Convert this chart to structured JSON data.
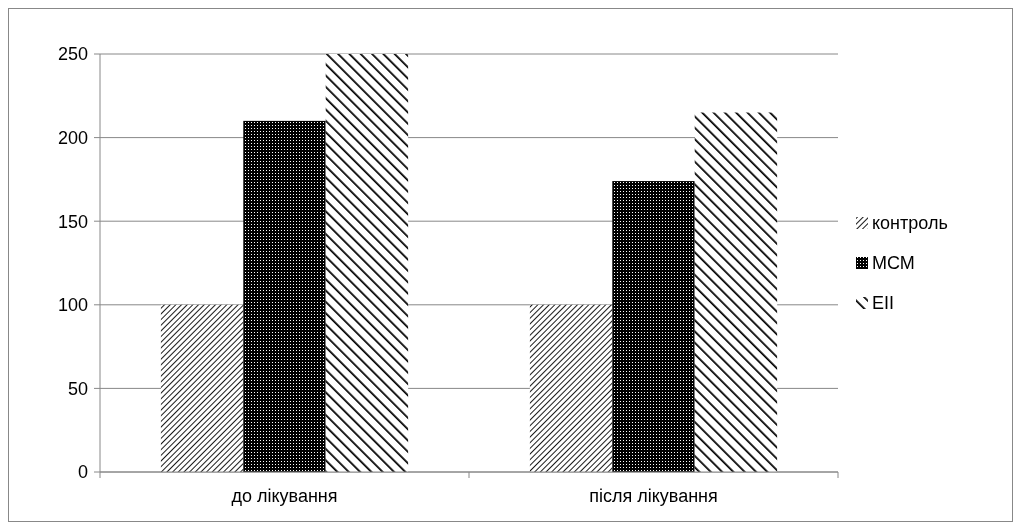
{
  "chart_data": {
    "type": "bar",
    "categories": [
      "до лікування",
      "після лікування"
    ],
    "series": [
      {
        "name": "контроль",
        "color": "#000000",
        "values": [
          100,
          100
        ]
      },
      {
        "name": "МСМ",
        "color": "#000000",
        "values": [
          210,
          174
        ]
      },
      {
        "name": "ЕІІ",
        "color": "#000000",
        "values": [
          250,
          215
        ]
      }
    ],
    "ylim": [
      0,
      250
    ],
    "yticks": [
      0,
      50,
      100,
      150,
      200,
      250
    ],
    "grid": "y",
    "legend": "right"
  }
}
